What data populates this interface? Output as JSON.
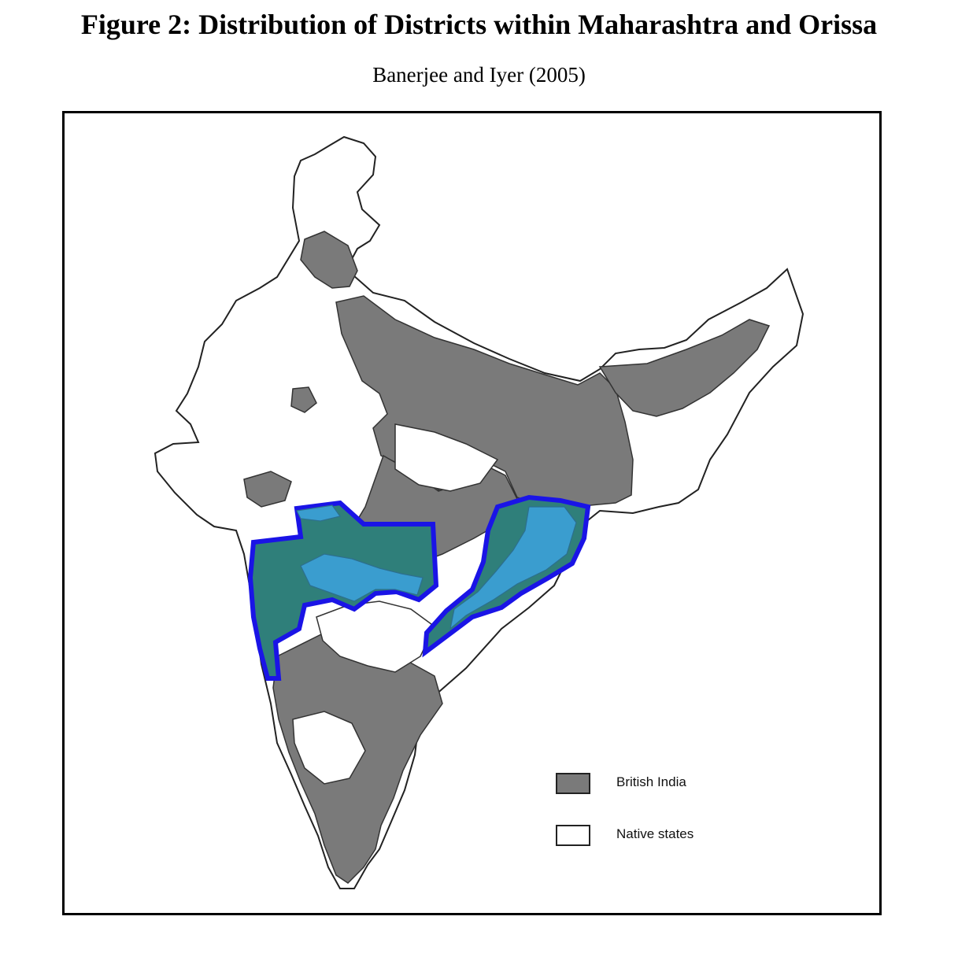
{
  "figure": {
    "title": "Figure 2: Distribution of Districts within Maharashtra and Orissa",
    "subtitle": "Banerjee and Iyer (2005)"
  },
  "legend": {
    "items": [
      {
        "label": "British India",
        "color": "#7a7a7a"
      },
      {
        "label": "Native states",
        "color": "#ffffff"
      }
    ]
  },
  "colors": {
    "british_india": "#7a7a7a",
    "native_states": "#ffffff",
    "highlight_british": "#2f7f7a",
    "highlight_native": "#3a9dcf",
    "highlight_outline": "#1a14e6",
    "district_border": "#333333"
  }
}
